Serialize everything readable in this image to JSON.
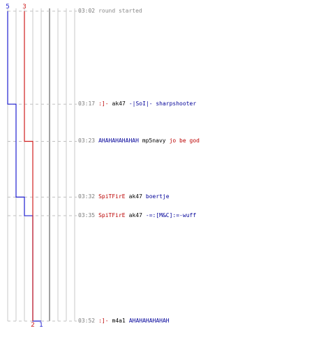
{
  "chart_data": {
    "type": "line",
    "title": "",
    "xlabel": "",
    "ylabel": "",
    "x_range": [
      0,
      5
    ],
    "time_range": [
      "03:02",
      "03:52"
    ],
    "grid": true,
    "legend": "none",
    "series": [
      {
        "color": "#1f1fd0",
        "start_label": "5",
        "end_label": "1",
        "points": [
          {
            "t": "03:02",
            "v": 5
          },
          {
            "t": "03:17",
            "v": 4
          },
          {
            "t": "03:32",
            "v": 3
          },
          {
            "t": "03:35",
            "v": 2
          },
          {
            "t": "03:52",
            "v": 1
          }
        ]
      },
      {
        "color": "#d01f1f",
        "start_label": "3",
        "end_label": "2",
        "points": [
          {
            "t": "03:02",
            "v": 3
          },
          {
            "t": "03:23",
            "v": 2
          },
          {
            "t": "03:52",
            "v": 2
          }
        ]
      }
    ]
  },
  "colors": {
    "blue": "#000099",
    "red": "#bb0000",
    "grid": "#c8c8c8",
    "grid_mid": "#8a8a8a",
    "dash": "#c0c0c0"
  },
  "events": [
    {
      "time": "03:02",
      "tokens": [
        {
          "text": "round started",
          "color": "gray"
        }
      ]
    },
    {
      "time": "03:17",
      "tokens": [
        {
          "text": ":]-",
          "color": "red"
        },
        {
          "text": "ak47",
          "color": "black"
        },
        {
          "text": "-|SoI|- sharpshooter",
          "color": "blue"
        }
      ]
    },
    {
      "time": "03:23",
      "tokens": [
        {
          "text": "AHAHAHAHAHAH",
          "color": "blue"
        },
        {
          "text": "mp5navy",
          "color": "black"
        },
        {
          "text": "jo be god",
          "color": "red"
        }
      ]
    },
    {
      "time": "03:32",
      "tokens": [
        {
          "text": "SpiTFirE",
          "color": "red"
        },
        {
          "text": "ak47",
          "color": "black"
        },
        {
          "text": "boertje",
          "color": "blue"
        }
      ]
    },
    {
      "time": "03:35",
      "tokens": [
        {
          "text": "SpiTFirE",
          "color": "red"
        },
        {
          "text": "ak47",
          "color": "black"
        },
        {
          "text": "-=:[M&C]:=-wuff",
          "color": "blue"
        }
      ]
    },
    {
      "time": "03:52",
      "tokens": [
        {
          "text": ":]-",
          "color": "red"
        },
        {
          "text": "m4a1",
          "color": "black"
        },
        {
          "text": "AHAHAHAHAHAH",
          "color": "blue"
        }
      ]
    }
  ]
}
